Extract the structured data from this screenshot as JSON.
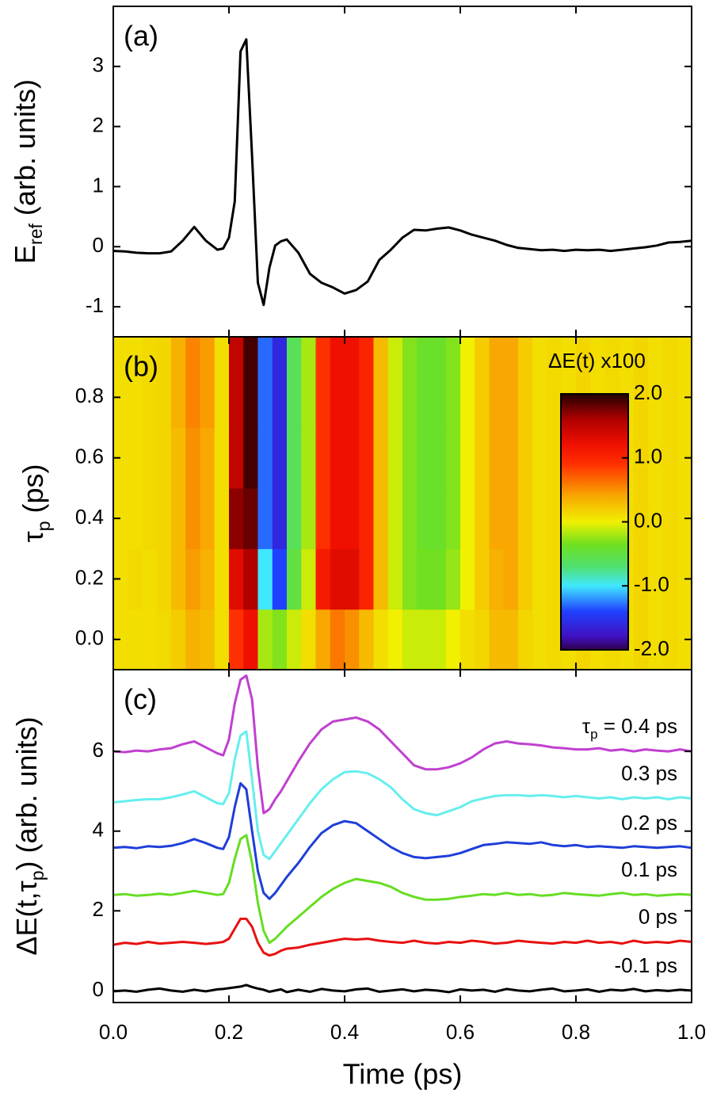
{
  "chart_data": [
    {
      "type": "line",
      "panel_label": "(a)",
      "ylabel": {
        "runs": [
          {
            "text": "E"
          },
          {
            "text": "ref",
            "sub": true
          },
          {
            "text": " (arb. units)"
          }
        ]
      },
      "xlim": [
        0,
        1
      ],
      "ylim": [
        -1.5,
        4.0
      ],
      "yticks": [
        -1,
        0,
        1,
        2,
        3
      ],
      "x": [
        0,
        0.02,
        0.04,
        0.06,
        0.08,
        0.1,
        0.12,
        0.14,
        0.16,
        0.18,
        0.19,
        0.2,
        0.21,
        0.22,
        0.23,
        0.24,
        0.25,
        0.26,
        0.27,
        0.28,
        0.29,
        0.3,
        0.32,
        0.34,
        0.36,
        0.38,
        0.4,
        0.42,
        0.44,
        0.46,
        0.48,
        0.5,
        0.52,
        0.54,
        0.56,
        0.58,
        0.6,
        0.62,
        0.64,
        0.66,
        0.68,
        0.7,
        0.72,
        0.74,
        0.76,
        0.78,
        0.8,
        0.82,
        0.84,
        0.86,
        0.88,
        0.9,
        0.92,
        0.94,
        0.96,
        0.98,
        1.0
      ],
      "series": [
        {
          "color": "#000000",
          "values": [
            -0.07,
            -0.08,
            -0.1,
            -0.11,
            -0.11,
            -0.08,
            0.1,
            0.33,
            0.1,
            -0.05,
            -0.03,
            0.15,
            0.75,
            3.25,
            3.45,
            1.5,
            -0.6,
            -0.97,
            -0.35,
            0.02,
            0.09,
            0.12,
            -0.1,
            -0.45,
            -0.6,
            -0.68,
            -0.78,
            -0.72,
            -0.58,
            -0.22,
            -0.05,
            0.15,
            0.28,
            0.27,
            0.3,
            0.32,
            0.27,
            0.2,
            0.15,
            0.1,
            0.03,
            -0.02,
            -0.04,
            -0.06,
            -0.05,
            -0.07,
            -0.05,
            -0.06,
            -0.05,
            -0.07,
            -0.05,
            -0.03,
            -0.01,
            0.02,
            0.07,
            0.08,
            0.1
          ]
        }
      ]
    },
    {
      "type": "heatmap",
      "panel_label": "(b)",
      "ylabel": {
        "runs": [
          {
            "text": "τ"
          },
          {
            "text": "p",
            "sub": true
          },
          {
            "text": " (ps)"
          }
        ]
      },
      "xlim": [
        0,
        1
      ],
      "ylim": [
        -0.1,
        1.0
      ],
      "yticks": [
        {
          "value": 0,
          "label": "0.0"
        },
        0.2,
        0.4,
        0.6,
        0.8
      ],
      "x_edges": [
        0,
        0.025,
        0.05,
        0.075,
        0.1,
        0.125,
        0.15,
        0.175,
        0.2,
        0.225,
        0.25,
        0.275,
        0.3,
        0.325,
        0.35,
        0.375,
        0.4,
        0.425,
        0.45,
        0.475,
        0.5,
        0.525,
        0.55,
        0.575,
        0.6,
        0.625,
        0.65,
        0.675,
        0.7,
        0.725,
        0.75,
        0.775,
        0.8,
        0.825,
        0.85,
        0.875,
        0.9,
        0.925,
        0.95,
        0.975,
        1.0
      ],
      "y_edges": [
        -0.1,
        0.1,
        0.3,
        0.5,
        0.7,
        1.0
      ],
      "z": [
        [
          0.1,
          0.1,
          0.1,
          0.12,
          0.2,
          0.35,
          0.3,
          0.1,
          0.9,
          1.2,
          -0.2,
          -0.3,
          -0.1,
          0.1,
          0.4,
          0.6,
          0.5,
          0.3,
          0.1,
          0.0,
          -0.1,
          -0.1,
          -0.1,
          0.0,
          0.1,
          0.15,
          0.3,
          0.3,
          0.15,
          0.1,
          0.12,
          0.1,
          0.15,
          0.1,
          0.12,
          0.1,
          0.15,
          0.1,
          0.12,
          0.1
        ],
        [
          0.1,
          0.12,
          0.1,
          0.15,
          0.3,
          0.45,
          0.35,
          0.1,
          1.3,
          1.6,
          -1.0,
          -1.4,
          -0.5,
          -0.1,
          1.1,
          1.3,
          1.3,
          1.0,
          0.3,
          -0.1,
          -0.3,
          -0.35,
          -0.35,
          -0.25,
          0.0,
          0.2,
          0.35,
          0.4,
          0.2,
          0.1,
          0.12,
          0.1,
          0.15,
          0.1,
          0.12,
          0.1,
          0.15,
          0.1,
          0.12,
          0.1
        ],
        [
          0.1,
          0.1,
          0.12,
          0.15,
          0.3,
          0.5,
          0.4,
          0.1,
          1.7,
          1.8,
          -1.3,
          -1.6,
          -0.6,
          -0.2,
          0.9,
          1.2,
          1.2,
          1.0,
          0.3,
          -0.1,
          -0.3,
          -0.4,
          -0.4,
          -0.3,
          0.0,
          0.2,
          0.4,
          0.4,
          0.2,
          0.1,
          0.12,
          0.1,
          0.15,
          0.1,
          0.12,
          0.1,
          0.15,
          0.1,
          0.12,
          0.1
        ],
        [
          0.1,
          0.1,
          0.12,
          0.15,
          0.3,
          0.5,
          0.4,
          0.1,
          1.5,
          1.9,
          -1.3,
          -1.6,
          -0.6,
          -0.2,
          0.9,
          1.2,
          1.2,
          1.0,
          0.3,
          -0.1,
          -0.3,
          -0.4,
          -0.4,
          -0.3,
          0.0,
          0.2,
          0.4,
          0.4,
          0.2,
          0.1,
          0.12,
          0.1,
          0.15,
          0.1,
          0.12,
          0.1,
          0.15,
          0.1,
          0.12,
          0.1
        ],
        [
          0.1,
          0.1,
          0.12,
          0.15,
          0.35,
          0.55,
          0.45,
          0.1,
          1.5,
          1.9,
          -1.3,
          -1.6,
          -0.6,
          -0.2,
          0.9,
          1.2,
          1.2,
          1.0,
          0.3,
          -0.1,
          -0.3,
          -0.4,
          -0.4,
          -0.3,
          0.0,
          0.2,
          0.4,
          0.4,
          0.2,
          0.1,
          0.12,
          0.1,
          0.15,
          0.1,
          0.12,
          0.1,
          0.15,
          0.1,
          0.12,
          0.1
        ]
      ],
      "colorbar": {
        "label": "ΔE(t) x100",
        "lim": [
          -2,
          2
        ],
        "ticks": [
          {
            "value": 2,
            "label": "2.0"
          },
          {
            "value": 1,
            "label": "1.0"
          },
          {
            "value": 0,
            "label": "0.0"
          },
          {
            "value": -1,
            "label": "-1.0"
          },
          {
            "value": -2,
            "label": "-2.0"
          }
        ],
        "colors": [
          [
            -2,
            "#30004a"
          ],
          [
            -1.8,
            "#4010c0"
          ],
          [
            -1.4,
            "#2040ff"
          ],
          [
            -1.0,
            "#40e8ff"
          ],
          [
            -0.7,
            "#50e070"
          ],
          [
            -0.35,
            "#70e020"
          ],
          [
            0,
            "#f0f000"
          ],
          [
            0.4,
            "#f8a800"
          ],
          [
            0.9,
            "#ff3000"
          ],
          [
            1.2,
            "#f01000"
          ],
          [
            1.6,
            "#b00000"
          ],
          [
            2,
            "#200000"
          ]
        ]
      }
    },
    {
      "type": "line",
      "panel_label": "(c)",
      "ylabel": {
        "runs": [
          {
            "text": "ΔE(t,τ"
          },
          {
            "text": "p",
            "sub": true
          },
          {
            "text": ") (arb. units)"
          }
        ]
      },
      "xlabel": "Time (ps)",
      "xlim": [
        0,
        1
      ],
      "ylim": [
        -0.3,
        8.05
      ],
      "yticks": [
        0,
        2,
        4,
        6
      ],
      "xticks": [
        {
          "value": 0,
          "label": "0.0"
        },
        0.2,
        0.4,
        0.6,
        0.8,
        {
          "value": 1,
          "label": "1.0"
        }
      ],
      "x": [
        0,
        0.02,
        0.04,
        0.06,
        0.08,
        0.1,
        0.12,
        0.14,
        0.16,
        0.18,
        0.19,
        0.2,
        0.21,
        0.22,
        0.23,
        0.24,
        0.25,
        0.26,
        0.27,
        0.28,
        0.29,
        0.3,
        0.32,
        0.34,
        0.36,
        0.38,
        0.4,
        0.42,
        0.44,
        0.46,
        0.48,
        0.5,
        0.52,
        0.54,
        0.56,
        0.58,
        0.6,
        0.62,
        0.64,
        0.66,
        0.68,
        0.7,
        0.72,
        0.74,
        0.76,
        0.78,
        0.8,
        0.82,
        0.84,
        0.86,
        0.88,
        0.9,
        0.92,
        0.94,
        0.96,
        0.98,
        1.0
      ],
      "series": [
        {
          "name": [
            {
              "text": "-0.1 ps"
            }
          ],
          "color": "#000000",
          "values": [
            -0.02,
            0.0,
            -0.03,
            0.02,
            0.05,
            0.0,
            -0.03,
            0.02,
            -0.02,
            0.03,
            0.04,
            0.06,
            0.08,
            0.1,
            0.14,
            0.09,
            0.05,
            0.02,
            -0.03,
            0.0,
            0.03,
            -0.04,
            0.02,
            -0.03,
            0.04,
            0.0,
            -0.02,
            0.03,
            0.05,
            -0.03,
            0.0,
            0.03,
            -0.02,
            0.02,
            0.0,
            -0.04,
            0.03,
            0.0,
            0.02,
            -0.03,
            0.04,
            0.0,
            -0.02,
            0.02,
            0.05,
            -0.02,
            0.0,
            0.03,
            -0.03,
            0.02,
            0.0,
            0.04,
            -0.02,
            0.01,
            -0.01,
            0.02,
            0.0
          ]
        },
        {
          "name": [
            {
              "text": "0 ps"
            }
          ],
          "color": "#e81010",
          "values": [
            1.15,
            1.2,
            1.17,
            1.22,
            1.18,
            1.2,
            1.22,
            1.2,
            1.17,
            1.2,
            1.22,
            1.3,
            1.55,
            1.8,
            1.8,
            1.6,
            1.2,
            0.95,
            0.88,
            0.92,
            1.0,
            1.05,
            1.08,
            1.15,
            1.2,
            1.25,
            1.3,
            1.28,
            1.3,
            1.25,
            1.22,
            1.2,
            1.25,
            1.2,
            1.18,
            1.22,
            1.2,
            1.25,
            1.22,
            1.18,
            1.2,
            1.25,
            1.22,
            1.2,
            1.18,
            1.22,
            1.2,
            1.25,
            1.2,
            1.22,
            1.18,
            1.25,
            1.2,
            1.22,
            1.2,
            1.25,
            1.22
          ]
        },
        {
          "name": [
            {
              "text": "0.1 ps"
            }
          ],
          "color": "#66dd22",
          "values": [
            2.4,
            2.42,
            2.38,
            2.4,
            2.43,
            2.4,
            2.45,
            2.5,
            2.45,
            2.4,
            2.42,
            2.7,
            3.3,
            3.8,
            3.9,
            3.2,
            2.2,
            1.5,
            1.2,
            1.3,
            1.45,
            1.6,
            1.85,
            2.1,
            2.35,
            2.55,
            2.7,
            2.8,
            2.75,
            2.7,
            2.6,
            2.45,
            2.35,
            2.28,
            2.28,
            2.3,
            2.35,
            2.38,
            2.42,
            2.4,
            2.45,
            2.4,
            2.42,
            2.38,
            2.4,
            2.45,
            2.42,
            2.4,
            2.38,
            2.42,
            2.45,
            2.4,
            2.42,
            2.38,
            2.4,
            2.42,
            2.4
          ]
        },
        {
          "name": [
            {
              "text": "0.2 ps"
            }
          ],
          "color": "#1f3fd8",
          "values": [
            3.58,
            3.6,
            3.57,
            3.62,
            3.6,
            3.63,
            3.7,
            3.8,
            3.7,
            3.58,
            3.55,
            3.85,
            4.6,
            5.2,
            5.05,
            4.0,
            3.0,
            2.45,
            2.3,
            2.45,
            2.65,
            2.85,
            3.2,
            3.6,
            3.95,
            4.15,
            4.25,
            4.2,
            4.0,
            3.8,
            3.6,
            3.45,
            3.35,
            3.32,
            3.35,
            3.38,
            3.45,
            3.55,
            3.65,
            3.68,
            3.72,
            3.7,
            3.68,
            3.72,
            3.65,
            3.62,
            3.65,
            3.6,
            3.62,
            3.6,
            3.58,
            3.62,
            3.6,
            3.58,
            3.6,
            3.62,
            3.58
          ]
        },
        {
          "name": [
            {
              "text": "0.3 ps"
            }
          ],
          "color": "#66eeee",
          "values": [
            4.72,
            4.75,
            4.78,
            4.8,
            4.8,
            4.85,
            4.92,
            5.0,
            4.85,
            4.7,
            4.68,
            4.95,
            5.8,
            6.4,
            6.5,
            5.3,
            4.0,
            3.4,
            3.3,
            3.5,
            3.7,
            3.9,
            4.3,
            4.7,
            5.05,
            5.3,
            5.48,
            5.5,
            5.45,
            5.3,
            5.1,
            4.8,
            4.55,
            4.45,
            4.4,
            4.5,
            4.6,
            4.75,
            4.82,
            4.88,
            4.9,
            4.9,
            4.88,
            4.9,
            4.88,
            4.85,
            4.88,
            4.85,
            4.82,
            4.85,
            4.8,
            4.85,
            4.82,
            4.85,
            4.8,
            4.85,
            4.82
          ]
        },
        {
          "name": [
            {
              "text": "τ"
            },
            {
              "text": "p",
              "sub": true
            },
            {
              "text": " = 0.4 ps"
            }
          ],
          "color": "#c040d0",
          "values": [
            6.0,
            5.98,
            6.02,
            6.0,
            6.05,
            6.08,
            6.18,
            6.25,
            6.1,
            5.95,
            5.9,
            6.3,
            7.2,
            7.8,
            7.9,
            7.3,
            5.6,
            4.45,
            4.55,
            4.8,
            5.0,
            5.25,
            5.75,
            6.2,
            6.55,
            6.75,
            6.8,
            6.85,
            6.75,
            6.55,
            6.25,
            5.95,
            5.65,
            5.55,
            5.55,
            5.6,
            5.7,
            5.85,
            6.05,
            6.2,
            6.25,
            6.2,
            6.18,
            6.15,
            6.1,
            6.08,
            6.05,
            6.05,
            6.08,
            6.02,
            6.05,
            6.0,
            6.05,
            6.02,
            6.0,
            6.05,
            6.0
          ]
        }
      ]
    }
  ]
}
